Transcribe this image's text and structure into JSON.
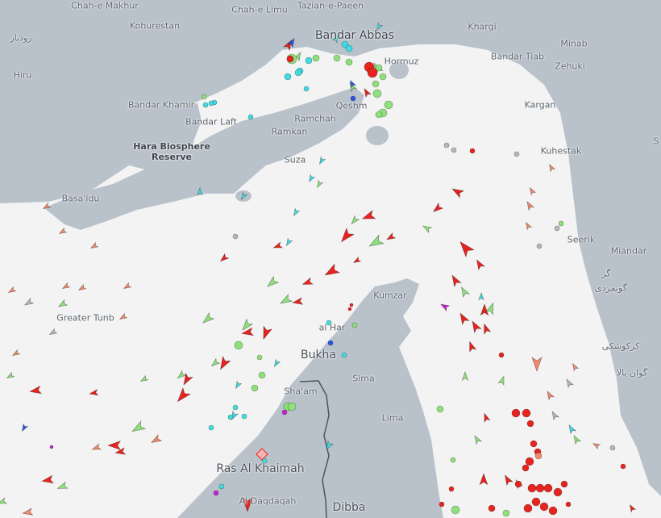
{
  "map": {
    "land_color": "#b9c2cb",
    "sea_color": "#f3f3f3",
    "labels": {
      "chah_e_makhur": "Chah-e Makhur",
      "chah_e_limu": "Chah-e Limu",
      "tazian": "Tazian-e-Paeen",
      "kohurestan": "Kohurestan",
      "rudbar": "رودبار",
      "bandar_abbas": "Bandar Abbas",
      "khargi": "Khargi",
      "minab": "Minab",
      "bandar_tiab": "Bandar Tiab",
      "zehuki": "Zehuki",
      "hiru": "Hiru",
      "hormuz": "Hormuz",
      "bandar_khamir": "Bandar Khamir",
      "qeshm": "Qeshm",
      "kargan": "Kargan",
      "bandar_laft": "Bandar Laft",
      "ramchah": "Ramchah",
      "ramkan": "Ramkan",
      "hara_1": "Hara Biosphere",
      "hara_2": "Reserve",
      "suza": "Suza",
      "kuhestak": "Kuhestak",
      "s_edge": "S",
      "basaidu": "Basa'idu",
      "seerik": "Seerik",
      "miandar": "Miandar",
      "gaz": "گز",
      "gunmardi": "گونمردی",
      "greater_tunb": "Greater Tunb",
      "kumzar": "Kumzar",
      "al_har": "al Har",
      "bukha": "Bukha",
      "karkushki": "کرکوشکی",
      "sima": "Sima",
      "gavan_bala": "گوان بالا",
      "shaam": "Sha'am",
      "lima": "Lima",
      "ras_al_khaimah": "Ras Al Khaimah",
      "al_daqdaqah": "Al Daqdaqah",
      "dibba": "Dibba"
    },
    "vessel_colors": {
      "tanker": "#e8231e",
      "cargo": "#8ee07a",
      "passenger": "#3fdde0",
      "fishing": "#f2896b",
      "unknown": "#b3b8bf",
      "tug_special": "#2b55e6",
      "pleasure": "#c522d6"
    }
  }
}
